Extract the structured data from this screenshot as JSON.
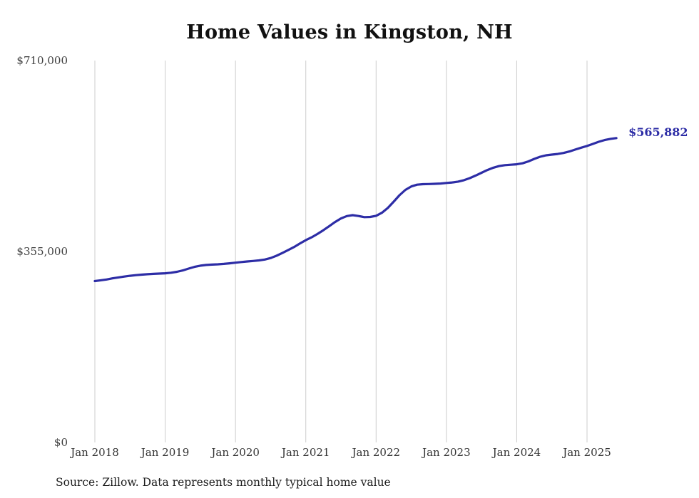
{
  "title": "Home Values in Kingston, NH",
  "source_note": "Source: Zillow. Data represents monthly typical home value",
  "end_label": "$565,882",
  "colors": {
    "line": "#2d2da6",
    "grid": "#cccccc",
    "axis_text": "#3d3d3d",
    "title_text": "#111111",
    "end_label_text": "#2d2da6"
  },
  "chart_data": {
    "type": "line",
    "title": "Home Values in Kingston, NH",
    "xlabel": "",
    "ylabel": "",
    "x_start_month": "Jan 2018",
    "x_end_month": "Jun 2025",
    "x_tick_labels": [
      "Jan 2018",
      "Jan 2019",
      "Jan 2020",
      "Jan 2021",
      "Jan 2022",
      "Jan 2023",
      "Jan 2024",
      "Jan 2025"
    ],
    "y_tick_labels": [
      "$0",
      "$355,000",
      "$710,000"
    ],
    "y_tick_values": [
      0,
      355000,
      710000
    ],
    "ylim": [
      0,
      710000
    ],
    "grid": "vertical-only",
    "legend_position": "none",
    "latest_value": 565882,
    "series": [
      {
        "name": "Typical home value",
        "values": [
          300000,
          301500,
          303000,
          305000,
          306800,
          308400,
          309800,
          311000,
          312000,
          312800,
          313400,
          313900,
          314500,
          315500,
          317200,
          319800,
          323200,
          326400,
          328600,
          329900,
          330600,
          331200,
          332000,
          333000,
          334200,
          335400,
          336500,
          337400,
          338400,
          340000,
          342800,
          347000,
          352200,
          357800,
          363400,
          369800,
          376000,
          381400,
          387600,
          394600,
          402200,
          409800,
          416400,
          420800,
          422600,
          421000,
          418800,
          419200,
          421400,
          427000,
          436000,
          447600,
          459600,
          469600,
          476000,
          479200,
          480200,
          480400,
          480800,
          481400,
          482400,
          483400,
          485000,
          487600,
          491400,
          496200,
          501400,
          506600,
          510800,
          513800,
          515600,
          516400,
          517200,
          519000,
          522600,
          527200,
          531200,
          533800,
          535200,
          536400,
          538200,
          541000,
          544600,
          548000,
          551200,
          555000,
          559000,
          562200,
          564400,
          565882
        ]
      }
    ]
  }
}
